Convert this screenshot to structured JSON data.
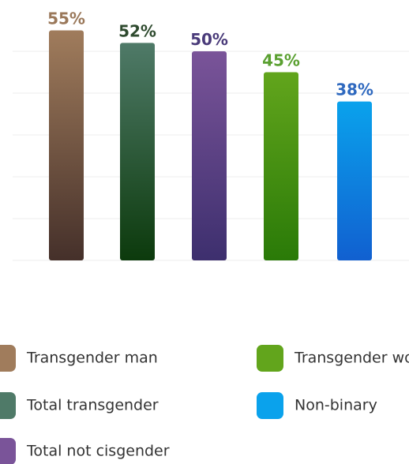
{
  "chart_data": {
    "type": "bar",
    "categories": [
      "Transgender man",
      "Total transgender",
      "Total not cisgender",
      "Transgender woman",
      "Non-binary"
    ],
    "values": [
      55,
      52,
      50,
      45,
      38
    ],
    "value_labels": [
      "55%",
      "52%",
      "50%",
      "45%",
      "38%"
    ],
    "colors": [
      "#a07c5c",
      "#4f7a68",
      "#7a5499",
      "#62a51c",
      "#0aa2ec"
    ],
    "gradient_bottom": [
      "#45302a",
      "#0c3a0c",
      "#3d2f6e",
      "#2a7a08",
      "#1160d0"
    ],
    "label_colors": [
      "#9a785a",
      "#2e4a2e",
      "#4a3b7a",
      "#5aa030",
      "#2f69bf"
    ],
    "ylim": [
      0,
      60
    ],
    "yticks": [
      0,
      10,
      20,
      30,
      40,
      50
    ],
    "grid": true
  }
}
